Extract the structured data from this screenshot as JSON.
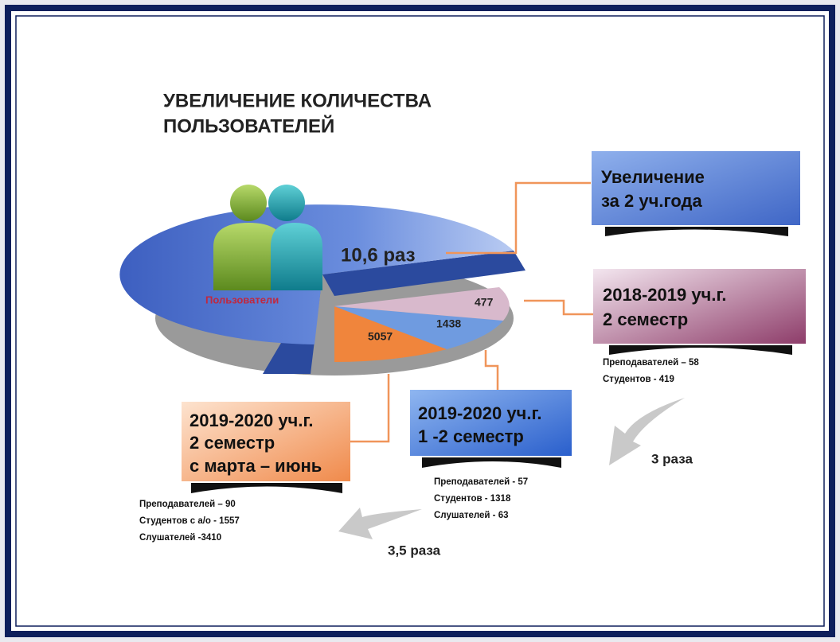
{
  "title": [
    "УВЕЛИЧЕНИЕ  КОЛИЧЕСТВА",
    "ПОЛЬЗОВАТЕЛЕЙ"
  ],
  "icon_label": "Пользователи",
  "growth": "10,6 раз",
  "pie": {
    "labels": [
      "5057",
      "1438",
      "477"
    ]
  },
  "boxes": [
    {
      "lines": [
        "Увеличение",
        "за 2 уч.года"
      ]
    },
    {
      "lines": [
        "2018-2019 уч.г.",
        "2 семестр"
      ],
      "details": [
        "Преподавателей  – 58",
        "Студентов  - 419"
      ]
    },
    {
      "lines": [
        "2019-2020 уч.г.",
        "1 -2 семестр"
      ],
      "details": [
        "Преподавателей  - 57",
        "Студентов  - 1318",
        "Слушателей  - 63"
      ]
    },
    {
      "lines": [
        "2019-2020 уч.г.",
        "2 семестр",
        "с марта – июнь"
      ],
      "details": [
        "Преподавателей  – 90",
        "Студентов  с а/о  - 1557",
        "Слушателей   -3410"
      ]
    }
  ],
  "ratios": [
    "3 раза",
    "3,5 раза"
  ]
}
